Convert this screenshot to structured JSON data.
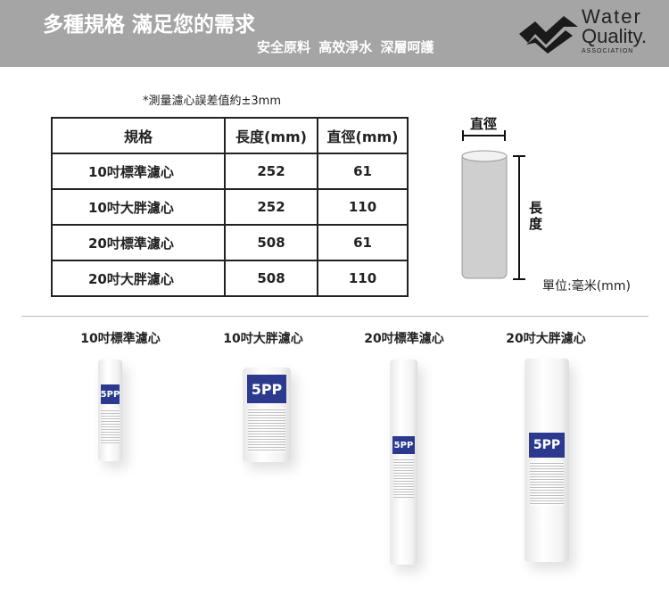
{
  "banner": {
    "title": "多種規格 滿足您的需求",
    "subtitle": "安全原料 高效淨水 深層呵護",
    "logo": {
      "line1": "Water",
      "line2": "Quality.",
      "line3": "ASSOCIATION"
    }
  },
  "note": "*測量濾心誤差值約±3mm",
  "table": {
    "headers": [
      "規格",
      "長度(mm)",
      "直徑(mm)"
    ],
    "rows": [
      [
        "10吋標準濾心",
        "252",
        "61"
      ],
      [
        "10吋大胖濾心",
        "252",
        "110"
      ],
      [
        "20吋標準濾心",
        "508",
        "61"
      ],
      [
        "20吋大胖濾心",
        "508",
        "110"
      ]
    ]
  },
  "diagram": {
    "diameter": "直徑",
    "length": "長度",
    "unit": "單位:毫米(mm)"
  },
  "products": [
    {
      "label": "10吋標準濾心",
      "badge": "5PP"
    },
    {
      "label": "10吋大胖濾心",
      "badge": "5PP"
    },
    {
      "label": "20吋標準濾心",
      "badge": "5PP"
    },
    {
      "label": "20吋大胖濾心",
      "badge": "5PP"
    }
  ]
}
